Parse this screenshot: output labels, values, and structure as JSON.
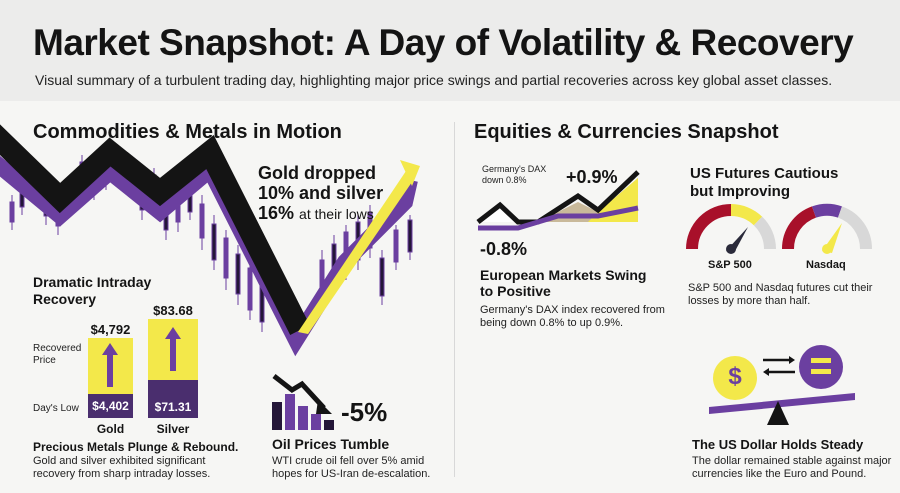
{
  "header": {
    "title": "Market Snapshot: A Day of Volatility & Recovery",
    "subtitle": "Visual summary of a turbulent trading day, highlighting major price swings and partial recoveries across key global asset classes."
  },
  "commodities": {
    "section_title": "Commodities & Metals in Motion",
    "gold_silver_line1": "Gold dropped",
    "gold_silver_line2": "10% and silver",
    "gold_silver_line3_value": "16%",
    "gold_silver_line3_rest": "at their lows",
    "recovery_title_line1": "Dramatic Intraday",
    "recovery_title_line2": "Recovery",
    "recovered_price_label_line1": "Recovered",
    "recovered_price_label_line2": "Price",
    "days_low_label": "Day's Low",
    "gold": {
      "name": "Gold",
      "recovered": "$4,792",
      "low": "$4,402"
    },
    "silver": {
      "name": "Silver",
      "recovered": "$83.68",
      "low": "$71.31"
    },
    "metals_title": "Precious Metals Plunge & Rebound.",
    "metals_desc_line1": "Gold and silver exhibited significant",
    "metals_desc_line2": "recovery from sharp intraday losses.",
    "oil_change": "-5%",
    "oil_title": "Oil Prices Tumble",
    "oil_desc_line1": "WTI crude oil fell over 5% amid",
    "oil_desc_line2": "hopes for US-Iran de-escalation."
  },
  "equities": {
    "section_title": "Equities & Currencies Snapshot",
    "dax_note_line1": "Germany's DAX",
    "dax_note_line2": "down 0.8%",
    "dax_up": "+0.9%",
    "dax_down": "-0.8%",
    "europe_title_line1": "European Markets Swing",
    "europe_title_line2": "to Positive",
    "europe_desc_line1": "Germany's DAX index recovered from",
    "europe_desc_line2": "being down 0.8% to up 0.9%.",
    "us_title_line1": "US Futures Cautious",
    "us_title_line2": "but Improving",
    "sp500_label": "S&P 500",
    "nasdaq_label": "Nasdaq",
    "us_desc_line1": "S&P 500 and Nasdaq futures cut their",
    "us_desc_line2": "losses by more than half.",
    "dollar_symbol": "$",
    "dollar_title": "The US Dollar Holds Steady",
    "dollar_desc_line1": "The dollar remained stable against major",
    "dollar_desc_line2": "currencies like the Euro and Pound."
  },
  "colors": {
    "purple": "#6b3fa0",
    "dark_purple": "#241638",
    "yellow": "#f3e84a",
    "black": "#141414"
  }
}
